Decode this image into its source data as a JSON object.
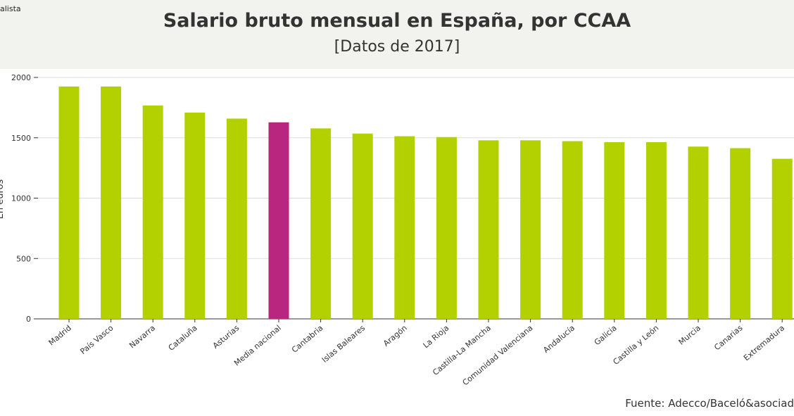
{
  "brand": "alista",
  "source": "Fuente: Adecco/Baceló&asociad",
  "chart_data": {
    "type": "bar",
    "title": "Salario bruto mensual en España, por CCAA",
    "subtitle": "[Datos de 2017]",
    "xlabel": "",
    "ylabel": "En euros",
    "ylim": [
      0,
      2000
    ],
    "yticks": [
      0,
      500,
      1000,
      1500,
      2000
    ],
    "grid": true,
    "categories": [
      "Madrid",
      "País Vasco",
      "Navarra",
      "Cataluña",
      "Asturias",
      "Media nacional",
      "Cantabria",
      "Islas Baleares",
      "Aragón",
      "La Rioja",
      "Castilla-La Mancha",
      "Comunidad Valenciana",
      "Andalucía",
      "Galicia",
      "Castilla y León",
      "Murcia",
      "Canarias",
      "Extremadura"
    ],
    "values": [
      1925,
      1925,
      1768,
      1709,
      1659,
      1628,
      1578,
      1535,
      1513,
      1506,
      1479,
      1479,
      1472,
      1464,
      1464,
      1427,
      1414,
      1326
    ],
    "highlight": "Media nacional",
    "colors": {
      "bar": "#b3d100",
      "highlight": "#b8267f",
      "grid": "#dddddd",
      "axis": "#333333"
    }
  }
}
